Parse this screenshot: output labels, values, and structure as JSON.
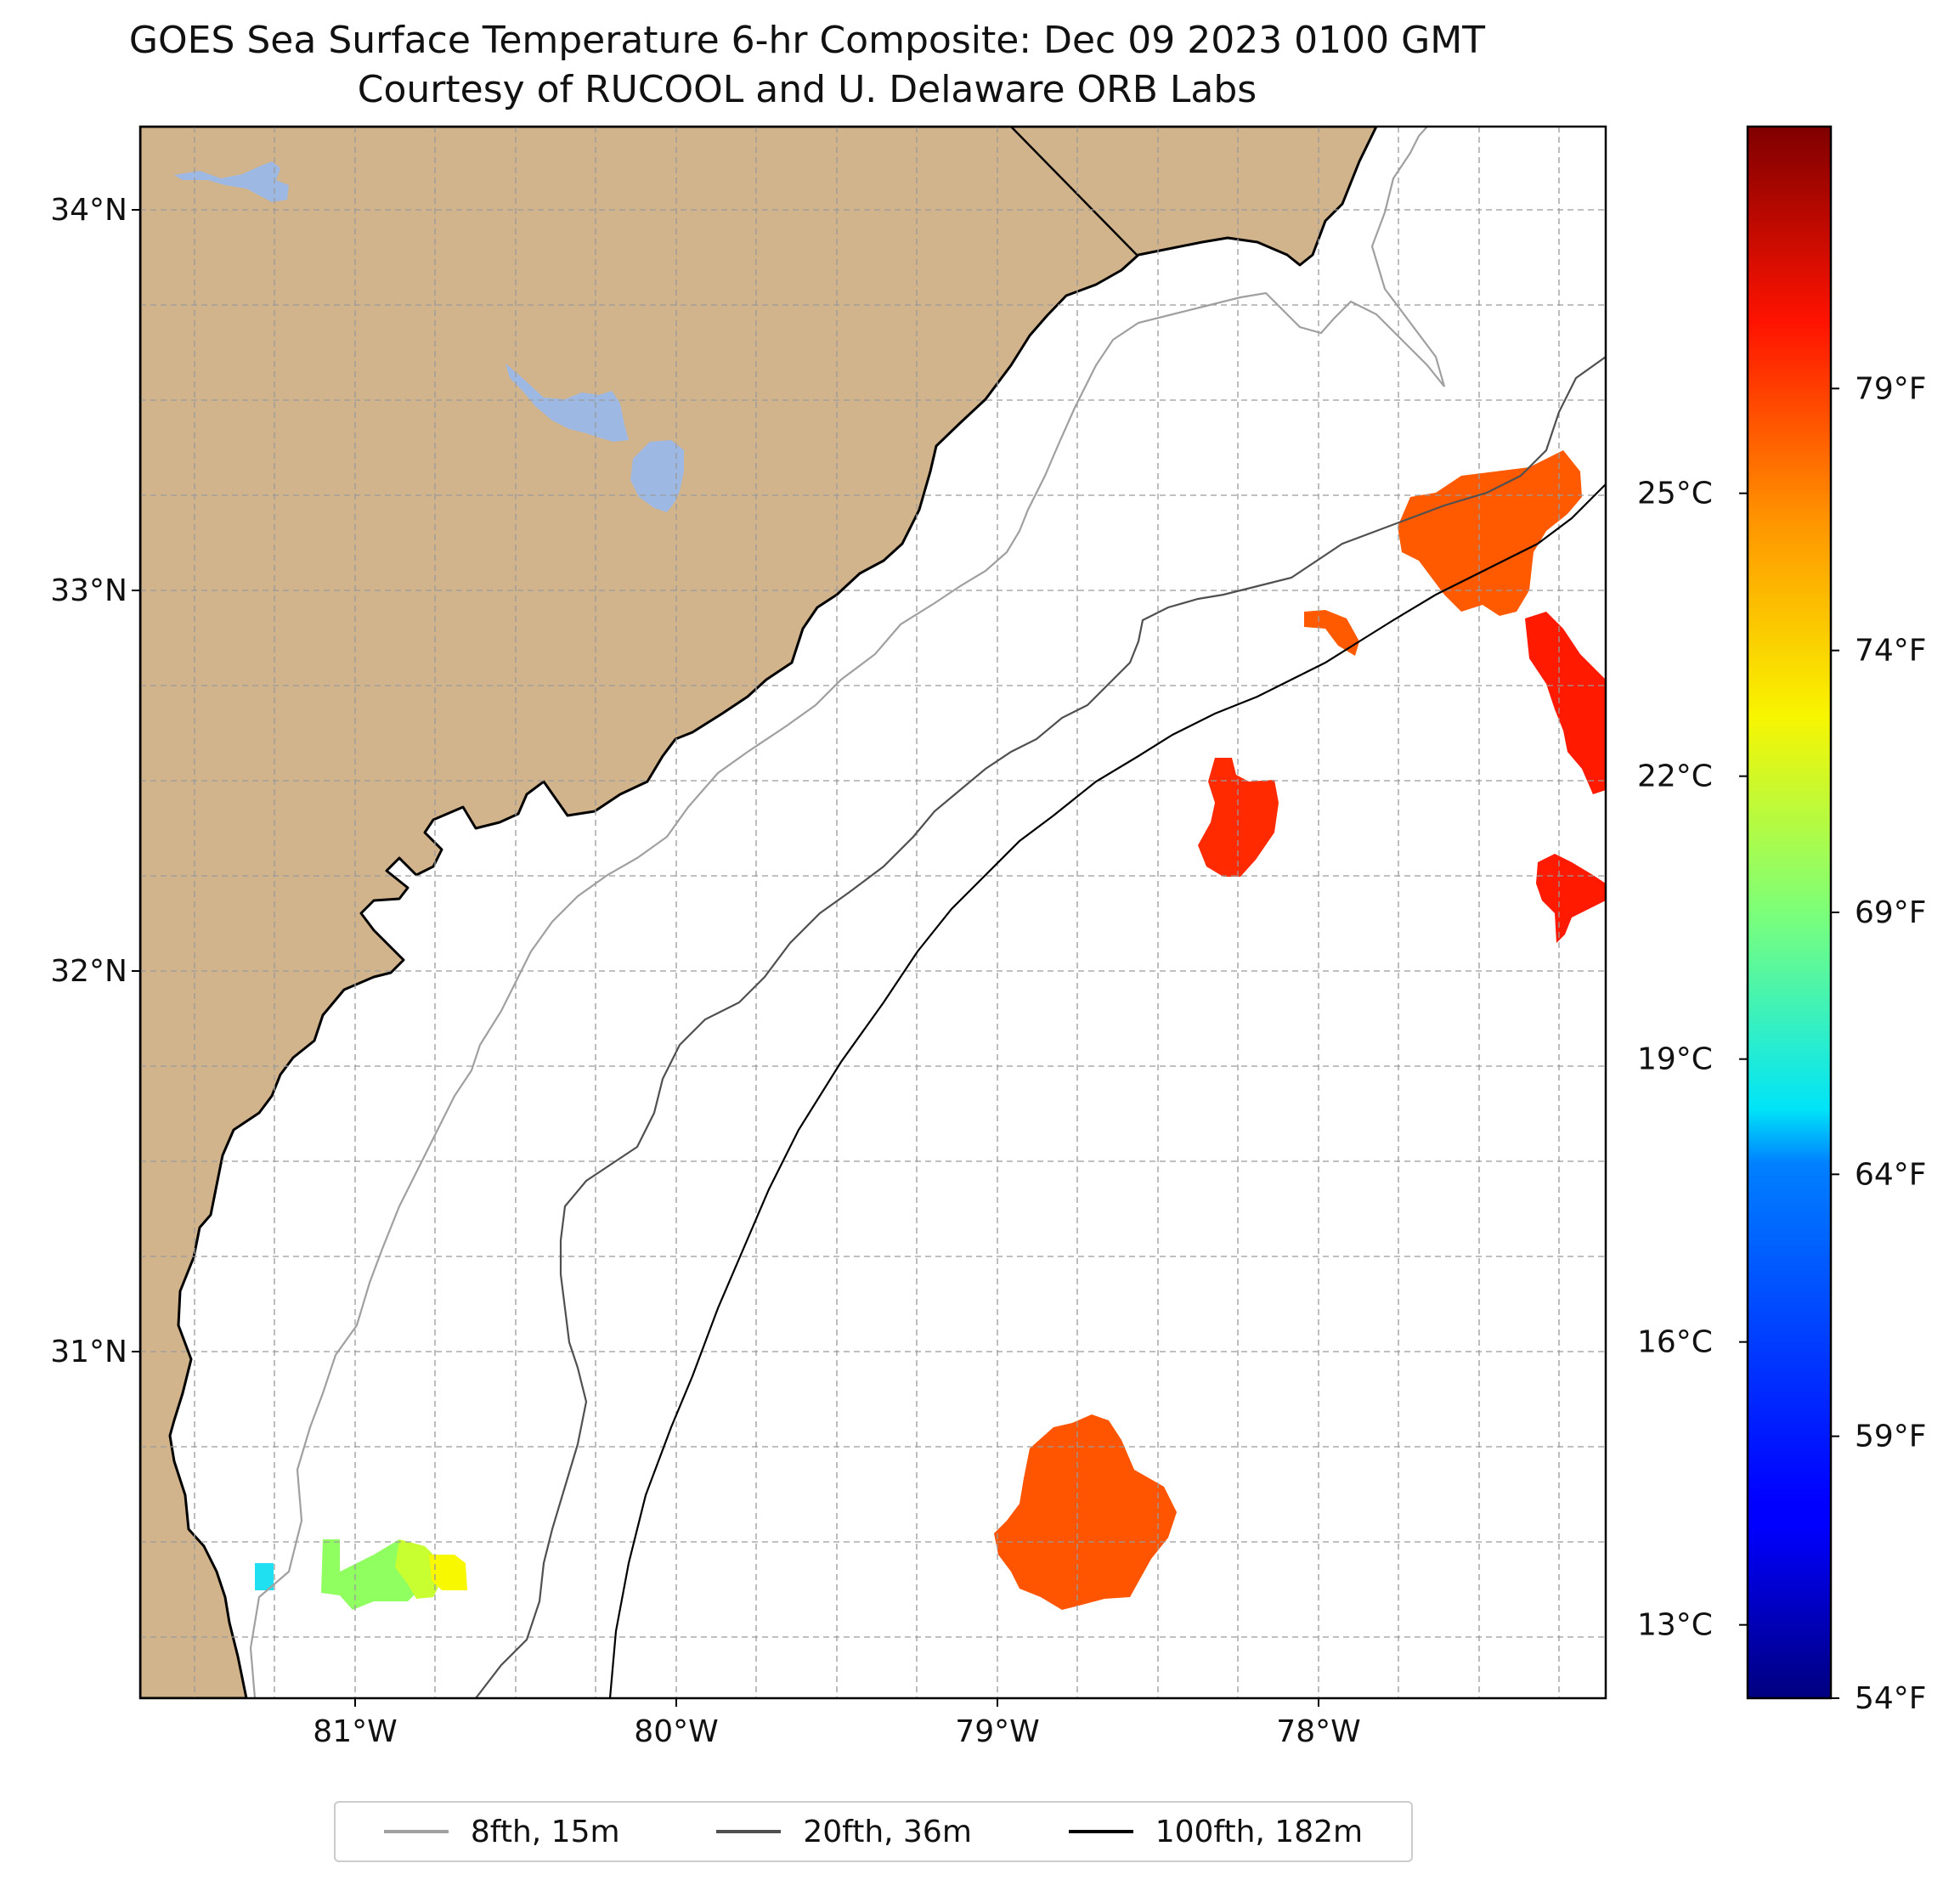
{
  "title": "GOES Sea Surface Temperature 6-hr Composite: Dec 09 2023 0100 GMT",
  "subtitle": "Courtesy of RUCOOL and U. Delaware ORB Labs",
  "map": {
    "lon_range": [
      -81.67,
      -77.2
    ],
    "lat_range": [
      30.22,
      34.21
    ],
    "lat_ticks": [
      {
        "value": 34,
        "label": "34°N"
      },
      {
        "value": 33,
        "label": "33°N"
      },
      {
        "value": 32,
        "label": "32°N"
      },
      {
        "value": 31,
        "label": "31°N"
      }
    ],
    "lon_ticks": [
      {
        "value": -81,
        "label": "81°W"
      },
      {
        "value": -80,
        "label": "80°W"
      },
      {
        "value": -79,
        "label": "79°W"
      },
      {
        "value": -78,
        "label": "78°W"
      }
    ],
    "grid": "dashed",
    "land_color": "#D2B48C",
    "lake_color": "#9DB8E3",
    "ocean_color": "#FFFFFF"
  },
  "colorbar": {
    "colormap": "jet",
    "range_f": [
      54,
      84
    ],
    "celsius_ticks": [
      {
        "value": 25,
        "label": "25°C"
      },
      {
        "value": 22,
        "label": "22°C"
      },
      {
        "value": 19,
        "label": "19°C"
      },
      {
        "value": 16,
        "label": "16°C"
      },
      {
        "value": 13,
        "label": "13°C"
      }
    ],
    "fahrenheit_ticks": [
      {
        "value": 79,
        "label": "79°F"
      },
      {
        "value": 74,
        "label": "74°F"
      },
      {
        "value": 69,
        "label": "69°F"
      },
      {
        "value": 64,
        "label": "64°F"
      },
      {
        "value": 59,
        "label": "59°F"
      },
      {
        "value": 54,
        "label": "54°F"
      }
    ]
  },
  "legend": [
    {
      "label": "8fth, 15m",
      "color": "#a0a0a0"
    },
    {
      "label": "20fth, 36m",
      "color": "#505050"
    },
    {
      "label": "100fth, 182m",
      "color": "#000000"
    }
  ],
  "chart_data": {
    "type": "heatmap",
    "variable": "sea surface temperature",
    "units": "°F",
    "sst_patches": [
      {
        "lon": -81.28,
        "lat": 30.38,
        "temp_f": 63
      },
      {
        "lon": -80.93,
        "lat": 30.38,
        "temp_f": 70
      },
      {
        "lon": -80.72,
        "lat": 30.38,
        "temp_f": 73
      },
      {
        "lon": -78.72,
        "lat": 30.52,
        "temp_f": 77.5
      },
      {
        "lon": -78.23,
        "lat": 32.38,
        "temp_f": 79.5
      },
      {
        "lon": -77.32,
        "lat": 33.15,
        "temp_f": 77.5
      },
      {
        "lon": -77.92,
        "lat": 32.93,
        "temp_f": 77.5
      },
      {
        "lon": -77.17,
        "lat": 32.75,
        "temp_f": 80
      },
      {
        "lon": -77.19,
        "lat": 32.25,
        "temp_f": 80
      }
    ]
  }
}
